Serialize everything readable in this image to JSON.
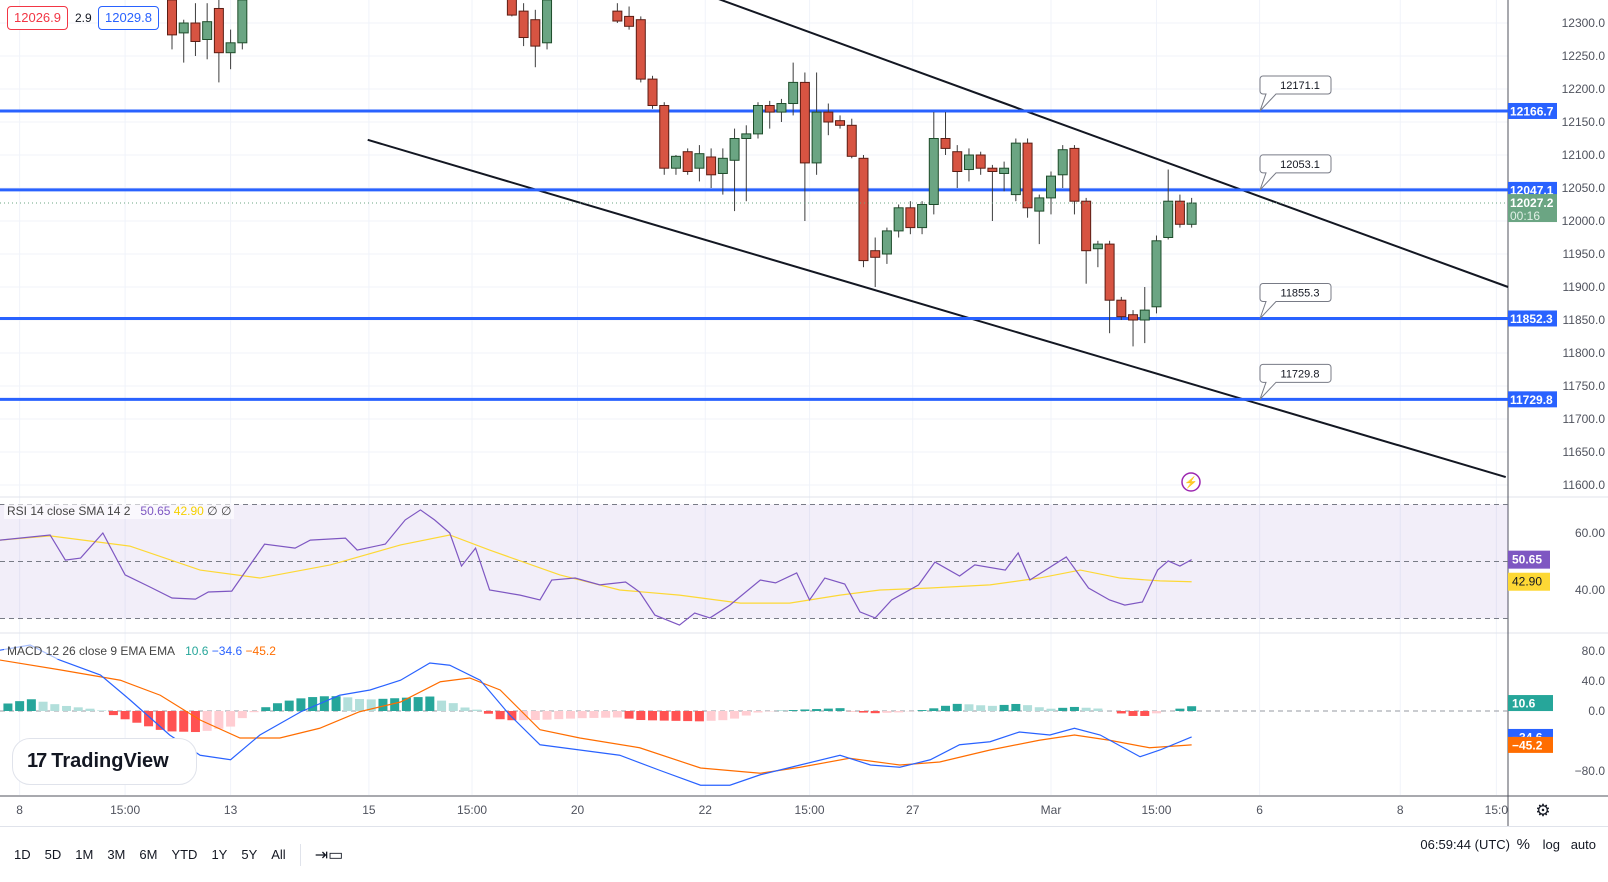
{
  "trade": {
    "sell": "12026.9",
    "spread": "2.9",
    "buy": "12029.8"
  },
  "colors": {
    "up": "#6ba583",
    "down": "#d75442",
    "level": "#2962ff",
    "rsi": "#7e57c2",
    "rsi_sma": "#fdd835",
    "macd": "#2962ff",
    "signal": "#ff6d00",
    "hist_up": "#26a69a",
    "hist_up_fade": "#b2dfdb",
    "hist_down": "#ff5252",
    "hist_down_fade": "#ffcdd2"
  },
  "chart_data": {
    "type": "candlestick",
    "price_ticks": [
      "12300.0",
      "12250.0",
      "12200.0",
      "12150.0",
      "12100.0",
      "12050.0",
      "12000.0",
      "11950.0",
      "11900.0",
      "11850.0",
      "11800.0",
      "11750.0",
      "11700.0",
      "11650.0",
      "11600.0"
    ],
    "price_range": [
      11600,
      12300
    ],
    "candle_segments": [
      {
        "start": 0,
        "ohlc": [
          [
            12335,
            12345,
            12260,
            12282
          ],
          [
            12285,
            12305,
            12240,
            12300
          ],
          [
            12300,
            12330,
            12250,
            12272
          ],
          [
            12275,
            12330,
            12245,
            12302
          ],
          [
            12322,
            12335,
            12210,
            12255
          ],
          [
            12255,
            12290,
            12230,
            12270
          ],
          [
            12270,
            12345,
            12260,
            12335
          ]
        ]
      },
      {
        "start": 29,
        "ohlc": [
          [
            12340,
            12345,
            12310,
            12312
          ],
          [
            12318,
            12330,
            12265,
            12278
          ],
          [
            12305,
            12320,
            12233,
            12265
          ],
          [
            12270,
            12340,
            12260,
            12335
          ]
        ]
      },
      {
        "start": 38,
        "ohlc": [
          [
            12318,
            12330,
            12300,
            12303
          ],
          [
            12310,
            12325,
            12290,
            12295
          ],
          [
            12305,
            12310,
            12210,
            12215
          ],
          [
            12215,
            12220,
            12170,
            12175
          ],
          [
            12175,
            12180,
            12070,
            12080
          ],
          [
            12080,
            12100,
            12070,
            12098
          ],
          [
            12105,
            12110,
            12070,
            12075
          ],
          [
            12080,
            12115,
            12060,
            12102
          ],
          [
            12097,
            12110,
            12050,
            12070
          ],
          [
            12072,
            12110,
            12040,
            12095
          ],
          [
            12092,
            12140,
            12015,
            12125
          ],
          [
            12125,
            12145,
            12030,
            12132
          ],
          [
            12132,
            12180,
            12125,
            12175
          ],
          [
            12175,
            12182,
            12140,
            12165
          ],
          [
            12165,
            12185,
            12150,
            12178
          ],
          [
            12178,
            12240,
            12160,
            12210
          ],
          [
            12210,
            12225,
            12000,
            12088
          ],
          [
            12088,
            12225,
            12070,
            12165
          ],
          [
            12165,
            12178,
            12130,
            12150
          ],
          [
            12152,
            12160,
            12140,
            12145
          ],
          [
            12145,
            12155,
            12095,
            12098
          ],
          [
            12095,
            12100,
            11930,
            11940
          ],
          [
            11955,
            11975,
            11900,
            11945
          ],
          [
            11950,
            11990,
            11935,
            11985
          ],
          [
            11985,
            12025,
            11975,
            12020
          ],
          [
            12020,
            12030,
            11980,
            11990
          ],
          [
            11990,
            12030,
            11980,
            12025
          ],
          [
            12025,
            12165,
            12010,
            12125
          ],
          [
            12125,
            12165,
            12100,
            12110
          ],
          [
            12105,
            12115,
            12050,
            12075
          ],
          [
            12078,
            12110,
            12060,
            12100
          ],
          [
            12100,
            12105,
            12070,
            12080
          ],
          [
            12080,
            12085,
            12000,
            12075
          ],
          [
            12072,
            12090,
            12045,
            12080
          ],
          [
            12040,
            12125,
            12030,
            12118
          ],
          [
            12118,
            12125,
            12005,
            12020
          ],
          [
            12015,
            12040,
            11965,
            12035
          ],
          [
            12035,
            12075,
            12010,
            12068
          ],
          [
            12070,
            12115,
            12050,
            12108
          ],
          [
            12110,
            12115,
            12010,
            12030
          ],
          [
            12030,
            12035,
            11905,
            11955
          ],
          [
            11958,
            11970,
            11930,
            11965
          ],
          [
            11965,
            11970,
            11830,
            11880
          ],
          [
            11880,
            11885,
            11850,
            11855
          ],
          [
            11858,
            11865,
            11810,
            11850
          ],
          [
            11850,
            11900,
            11815,
            11865
          ],
          [
            11870,
            11978,
            11860,
            11970
          ],
          [
            11975,
            12078,
            11972,
            12030
          ],
          [
            12030,
            12040,
            11990,
            11995
          ],
          [
            11995,
            12035,
            11990,
            12027.2
          ]
        ]
      }
    ],
    "levels": [
      {
        "price": 12166.7,
        "label": "12166.7",
        "callout": "12171.1"
      },
      {
        "price": 12047.1,
        "label": "12047.1",
        "callout": "12053.1"
      },
      {
        "price": 11852.3,
        "label": "11852.3",
        "callout": "11855.3"
      },
      {
        "price": 11729.8,
        "label": "11729.8",
        "callout": "11729.8"
      }
    ],
    "trendlines": [
      {
        "from": [
          43.6,
          12356
        ],
        "to": [
          114,
          11900
        ]
      },
      {
        "from": [
          16.7,
          12123
        ],
        "to": [
          113.8,
          11612
        ]
      }
    ],
    "last_price": {
      "value": 12027.2,
      "label": "12027.2",
      "countdown": "00:16"
    },
    "time_ticks": [
      {
        "bar": -13,
        "label": "8"
      },
      {
        "bar": -4,
        "label": "15:00"
      },
      {
        "bar": 5,
        "label": "13"
      },
      {
        "bar": 16.8,
        "label": "15"
      },
      {
        "bar": 25.6,
        "label": "15:00"
      },
      {
        "bar": 34.6,
        "label": "20"
      },
      {
        "bar": 45.5,
        "label": "22"
      },
      {
        "bar": 54.4,
        "label": "15:00"
      },
      {
        "bar": 63.2,
        "label": "27"
      },
      {
        "bar": 75,
        "label": "Mar"
      },
      {
        "bar": 84,
        "label": "15:00"
      },
      {
        "bar": 92.8,
        "label": "6"
      },
      {
        "bar": 104.8,
        "label": "8"
      },
      {
        "bar": 113,
        "label": "15:0"
      }
    ],
    "rsi": {
      "legend": "RSI 14 close SMA 14 2",
      "value": "50.65",
      "sma_value": "42.90",
      "extra1": "∅",
      "extra2": "∅",
      "ticks": [
        "60.00",
        "40.00"
      ],
      "bands": [
        70,
        50,
        30
      ],
      "line": [
        [
          -14.7,
          57.5
        ],
        [
          -10.4,
          59.3
        ],
        [
          -9.1,
          50.5
        ],
        [
          -7.8,
          51.2
        ],
        [
          -5.9,
          60
        ],
        [
          -4,
          45.3
        ],
        [
          -1.9,
          41.1
        ],
        [
          0,
          37.2
        ],
        [
          2,
          36.8
        ],
        [
          3.1,
          39.3
        ],
        [
          5.1,
          39.6
        ],
        [
          7.9,
          56.1
        ],
        [
          10.5,
          54.7
        ],
        [
          11.8,
          57.5
        ],
        [
          14.8,
          58.2
        ],
        [
          15.8,
          54
        ],
        [
          18.2,
          56.1
        ],
        [
          19.9,
          64.6
        ],
        [
          21.2,
          68.1
        ],
        [
          22.4,
          64.6
        ],
        [
          23.7,
          60
        ],
        [
          24.7,
          48.4
        ],
        [
          25.9,
          54.7
        ],
        [
          27.1,
          40
        ],
        [
          29.7,
          38.2
        ],
        [
          31.4,
          36.5
        ],
        [
          32.4,
          43.5
        ],
        [
          34.4,
          44.2
        ],
        [
          36.5,
          41.8
        ],
        [
          38.7,
          42.8
        ],
        [
          39.9,
          39.3
        ],
        [
          41.2,
          31.2
        ],
        [
          43.3,
          27.7
        ],
        [
          44.6,
          31.9
        ],
        [
          45.9,
          30.2
        ],
        [
          47.6,
          34.7
        ],
        [
          50.2,
          43.5
        ],
        [
          51.5,
          42.5
        ],
        [
          53.3,
          46
        ],
        [
          54.4,
          36.5
        ],
        [
          55.7,
          44.2
        ],
        [
          57.4,
          42.1
        ],
        [
          58.7,
          32.3
        ],
        [
          60,
          30.2
        ],
        [
          61.4,
          36.5
        ],
        [
          63.7,
          41.8
        ],
        [
          65.1,
          49.8
        ],
        [
          67.2,
          44.9
        ],
        [
          68.5,
          48.8
        ],
        [
          71.1,
          47
        ],
        [
          72.2,
          53
        ],
        [
          73.2,
          43.5
        ],
        [
          76.3,
          51.6
        ],
        [
          78.2,
          40.7
        ],
        [
          80,
          36.5
        ],
        [
          81.3,
          34.7
        ],
        [
          82.8,
          35.8
        ],
        [
          84.1,
          47
        ],
        [
          85,
          50.2
        ],
        [
          86,
          48.4
        ],
        [
          87,
          50.65
        ]
      ],
      "sma": [
        [
          -14.7,
          57.5
        ],
        [
          -10.4,
          59
        ],
        [
          -3.6,
          55.4
        ],
        [
          2.4,
          47
        ],
        [
          7.5,
          44.2
        ],
        [
          13.5,
          48.8
        ],
        [
          19.5,
          55.8
        ],
        [
          23.7,
          59.3
        ],
        [
          27.1,
          54
        ],
        [
          33.1,
          45.3
        ],
        [
          38.2,
          40
        ],
        [
          43.3,
          38.2
        ],
        [
          48.5,
          35.4
        ],
        [
          52.7,
          35.4
        ],
        [
          57,
          38.2
        ],
        [
          60.4,
          40
        ],
        [
          64.7,
          40.7
        ],
        [
          69.8,
          41.8
        ],
        [
          74,
          44.2
        ],
        [
          77.5,
          47
        ],
        [
          80.9,
          44.2
        ],
        [
          84.3,
          43.2
        ],
        [
          87,
          42.9
        ]
      ]
    },
    "macd": {
      "legend": "MACD 12 26 close 9 EMA EMA",
      "hist_value": "10.6",
      "macd_value": "−34.6",
      "signal_value": "−45.2",
      "ticks": [
        {
          "v": 80,
          "label": "80.0"
        },
        {
          "v": 40,
          "label": "40.0"
        },
        {
          "v": 0,
          "label": "0.0"
        },
        {
          "v": -80,
          "label": "−80.0"
        }
      ],
      "macd_line": [
        [
          -14.7,
          81
        ],
        [
          -12.1,
          88
        ],
        [
          -9.6,
          68
        ],
        [
          -6.1,
          48
        ],
        [
          -3.6,
          15
        ],
        [
          -0.2,
          -32
        ],
        [
          2.4,
          -59
        ],
        [
          5,
          -65
        ],
        [
          7.5,
          -32
        ],
        [
          11,
          -1
        ],
        [
          14.3,
          21
        ],
        [
          16.9,
          28
        ],
        [
          19.5,
          41
        ],
        [
          22,
          64
        ],
        [
          23.7,
          61
        ],
        [
          26.3,
          41
        ],
        [
          28.8,
          -5
        ],
        [
          31.4,
          -45
        ],
        [
          34.8,
          -52
        ],
        [
          38.2,
          -59
        ],
        [
          41.6,
          -79
        ],
        [
          45.1,
          -99
        ],
        [
          47.6,
          -99
        ],
        [
          50.2,
          -85
        ],
        [
          53.6,
          -72
        ],
        [
          57,
          -59
        ],
        [
          59.6,
          -72
        ],
        [
          62.1,
          -75
        ],
        [
          64.7,
          -65
        ],
        [
          67.2,
          -45
        ],
        [
          69.8,
          -41
        ],
        [
          72.3,
          -28
        ],
        [
          74.9,
          -32
        ],
        [
          77,
          -23
        ],
        [
          79.2,
          -32
        ],
        [
          82.6,
          -61
        ],
        [
          84.3,
          -52
        ],
        [
          87,
          -34.6
        ]
      ],
      "signal_line": [
        [
          -14.7,
          68
        ],
        [
          -9.6,
          55
        ],
        [
          -4.4,
          41
        ],
        [
          -1,
          21
        ],
        [
          2.4,
          -12
        ],
        [
          5.8,
          -36
        ],
        [
          9.2,
          -36
        ],
        [
          12.6,
          -23
        ],
        [
          16,
          -1
        ],
        [
          19.5,
          12
        ],
        [
          22.9,
          39
        ],
        [
          25.4,
          44
        ],
        [
          28,
          28
        ],
        [
          31.4,
          -25
        ],
        [
          34.8,
          -36
        ],
        [
          39.9,
          -49
        ],
        [
          45.1,
          -76
        ],
        [
          50.2,
          -83
        ],
        [
          53.6,
          -75
        ],
        [
          57.8,
          -63
        ],
        [
          62.1,
          -72
        ],
        [
          65.5,
          -68
        ],
        [
          69.8,
          -52
        ],
        [
          74,
          -39
        ],
        [
          77,
          -32
        ],
        [
          80,
          -39
        ],
        [
          83.4,
          -49
        ],
        [
          87,
          -45.2
        ]
      ]
    }
  },
  "logo": "TradingView",
  "bottombar": {
    "ranges": [
      "1D",
      "5D",
      "1M",
      "3M",
      "6M",
      "YTD",
      "1Y",
      "5Y",
      "All"
    ],
    "clock": "06:59:44 (UTC)",
    "percent": "%",
    "log": "log",
    "auto": "auto"
  }
}
